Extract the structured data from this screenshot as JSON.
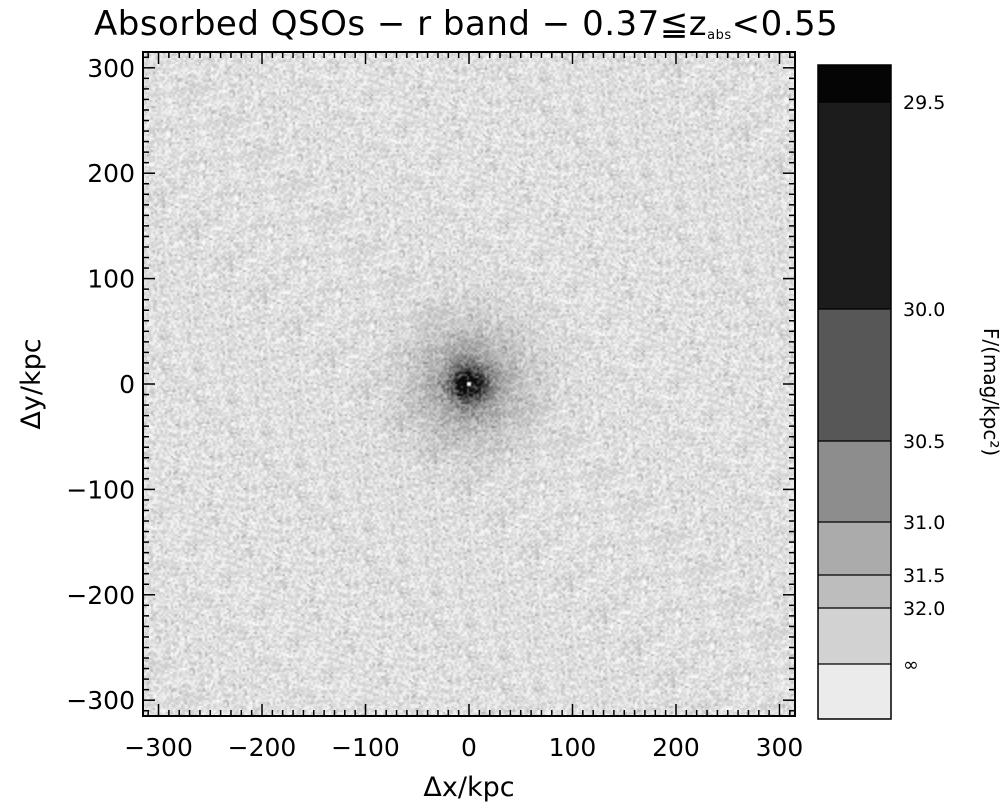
{
  "chart_data": {
    "type": "heatmap",
    "title": {
      "main": "Absorbed QSOs − r band − 0.37≦z",
      "subscript": "abs",
      "suffix": "<0.55"
    },
    "xlabel": "Δx/kpc",
    "ylabel": "Δy/kpc",
    "xlim": [
      -315,
      315
    ],
    "ylim": [
      -315,
      315
    ],
    "x_ticks": [
      -300,
      -200,
      -100,
      0,
      100,
      200,
      300
    ],
    "y_ticks": [
      -300,
      -200,
      -100,
      0,
      100,
      200,
      300
    ],
    "x_tick_labels": [
      "−300",
      "−200",
      "−100",
      "0",
      "100",
      "200",
      "300"
    ],
    "y_tick_labels": [
      "−300",
      "−200",
      "−100",
      "0",
      "100",
      "200",
      "300"
    ],
    "colorbar": {
      "label": "F/(mag/kpc²)",
      "levels": [
        {
          "label": "29.5",
          "value": 29.5,
          "color": "#1c1c1c"
        },
        {
          "label": "30.0",
          "value": 30.0,
          "color": "#575757"
        },
        {
          "label": "30.5",
          "value": 30.5,
          "color": "#8d8d8d"
        },
        {
          "label": "31.0",
          "value": 31.0,
          "color": "#ababab"
        },
        {
          "label": "31.5",
          "value": 31.5,
          "color": "#bdbdbd"
        },
        {
          "label": "32.0",
          "value": 32.0,
          "color": "#d2d2d2"
        },
        {
          "label": "∞",
          "value": null,
          "color": "#ebebeb"
        }
      ],
      "top_color": "#050505"
    },
    "features": {
      "background": "noisy light-grey surface brightness field",
      "peak_center": [
        0,
        0
      ],
      "peak_value": 29.5,
      "peak_core_radius_kpc": 12,
      "peak_halo_radius_kpc": 40
    }
  }
}
